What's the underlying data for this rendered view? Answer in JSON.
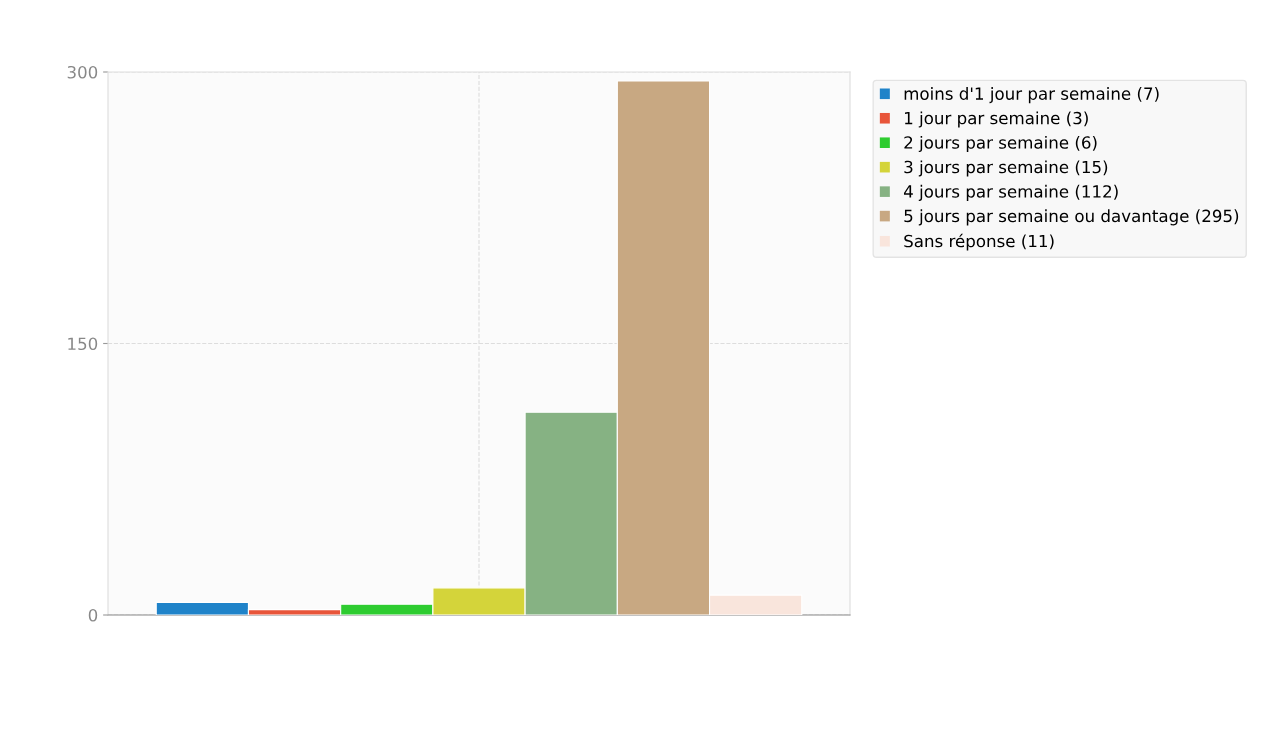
{
  "chart_data": {
    "type": "bar",
    "categories": [
      null
    ],
    "series": [
      {
        "name": "moins d'1 jour par semaine (7)",
        "color": "#1f83c9",
        "values": [
          7
        ]
      },
      {
        "name": "1 jour par semaine (3)",
        "color": "#e8553a",
        "values": [
          3
        ]
      },
      {
        "name": "2 jours par semaine (6)",
        "color": "#2ecc30",
        "values": [
          6
        ]
      },
      {
        "name": "3 jours par semaine (15)",
        "color": "#d4d43a",
        "values": [
          15
        ]
      },
      {
        "name": "4 jours par semaine (112)",
        "color": "#86b283",
        "values": [
          112
        ]
      },
      {
        "name": "5 jours par semaine ou davantage (295)",
        "color": "#c8a882",
        "values": [
          295
        ]
      },
      {
        "name": "Sans réponse (11)",
        "color": "#f9e5dc",
        "values": [
          11
        ]
      }
    ],
    "ylim": [
      0,
      300
    ],
    "yticks": [
      0,
      150,
      300
    ],
    "grid": true,
    "legend": "right"
  }
}
